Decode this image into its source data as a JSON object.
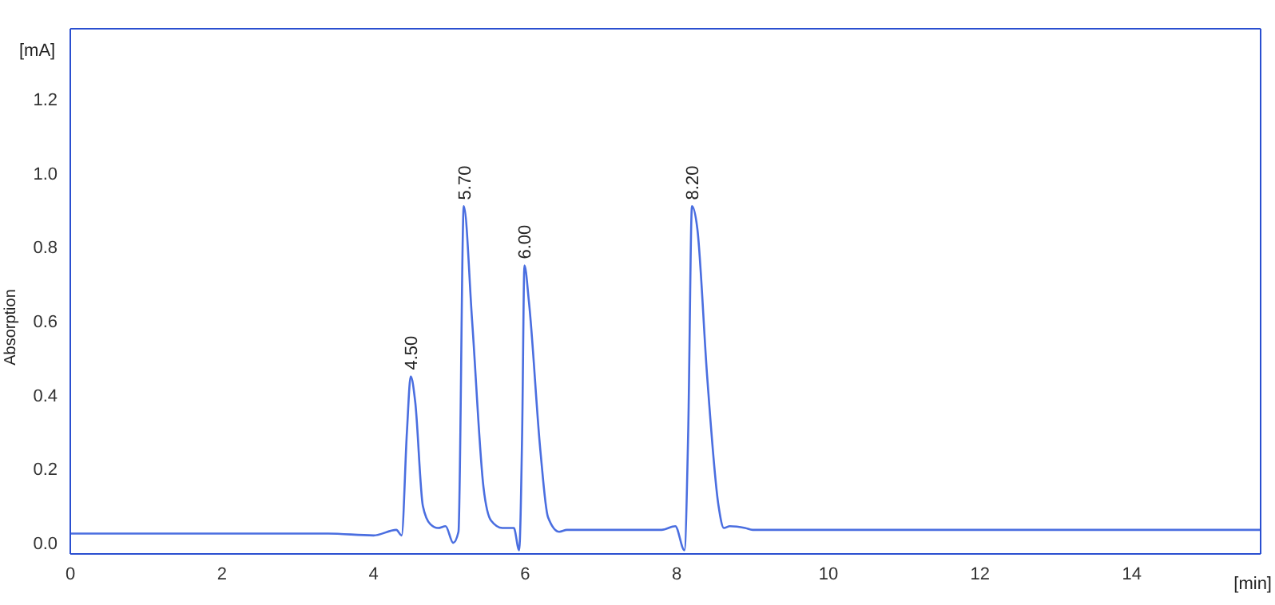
{
  "chart_data": {
    "type": "line",
    "xlabel": "[min]",
    "ylabel": "Absorption",
    "annotations": [
      "[mA]",
      {
        "text": "4.50",
        "x": 4.49,
        "y": 0.45
      },
      {
        "text": "5.70",
        "x": 5.19,
        "y": 0.91
      },
      {
        "text": "6.00",
        "x": 5.99,
        "y": 0.75
      },
      {
        "text": "8.20",
        "x": 8.2,
        "y": 0.91
      }
    ],
    "x": [
      0,
      3.4,
      4.0,
      4.3,
      4.37,
      4.44,
      4.49,
      4.55,
      4.65,
      4.75,
      4.85,
      4.95,
      5.05,
      5.12,
      5.19,
      5.3,
      5.45,
      5.55,
      5.7,
      5.85,
      5.92,
      5.96,
      5.99,
      6.05,
      6.2,
      6.3,
      6.45,
      6.55,
      7.8,
      7.98,
      8.1,
      8.15,
      8.2,
      8.27,
      8.4,
      8.55,
      8.62,
      8.7,
      8.9,
      9.0,
      15.7
    ],
    "series": [
      {
        "color": "#4a6ee0",
        "values": [
          0.025,
          0.025,
          0.02,
          0.035,
          0.02,
          0.3,
          0.45,
          0.38,
          0.1,
          0.05,
          0.04,
          0.045,
          0.0,
          0.03,
          0.91,
          0.6,
          0.15,
          0.06,
          0.04,
          0.04,
          -0.02,
          0.3,
          0.75,
          0.65,
          0.25,
          0.07,
          0.03,
          0.035,
          0.035,
          0.045,
          -0.02,
          0.3,
          0.91,
          0.85,
          0.45,
          0.1,
          0.04,
          0.045,
          0.04,
          0.035,
          0.035
        ]
      }
    ],
    "xlim": [
      0,
      15.7
    ],
    "xticks": [
      0,
      2,
      4,
      6,
      8,
      10,
      12,
      14
    ],
    "ylim": [
      -0.03,
      1.39
    ],
    "yticks": [
      {
        "value": 0,
        "label": "0.0"
      },
      {
        "value": 0.2,
        "label": "0.2"
      },
      {
        "value": 0.4,
        "label": "0.4"
      },
      {
        "value": 0.6,
        "label": "0.6"
      },
      {
        "value": 0.8,
        "label": "0.8"
      },
      {
        "value": 1,
        "label": "1.0"
      },
      {
        "value": 1.2,
        "label": "1.2"
      }
    ],
    "grid": false,
    "legend": false,
    "marker": "none",
    "line_style": "solid"
  }
}
